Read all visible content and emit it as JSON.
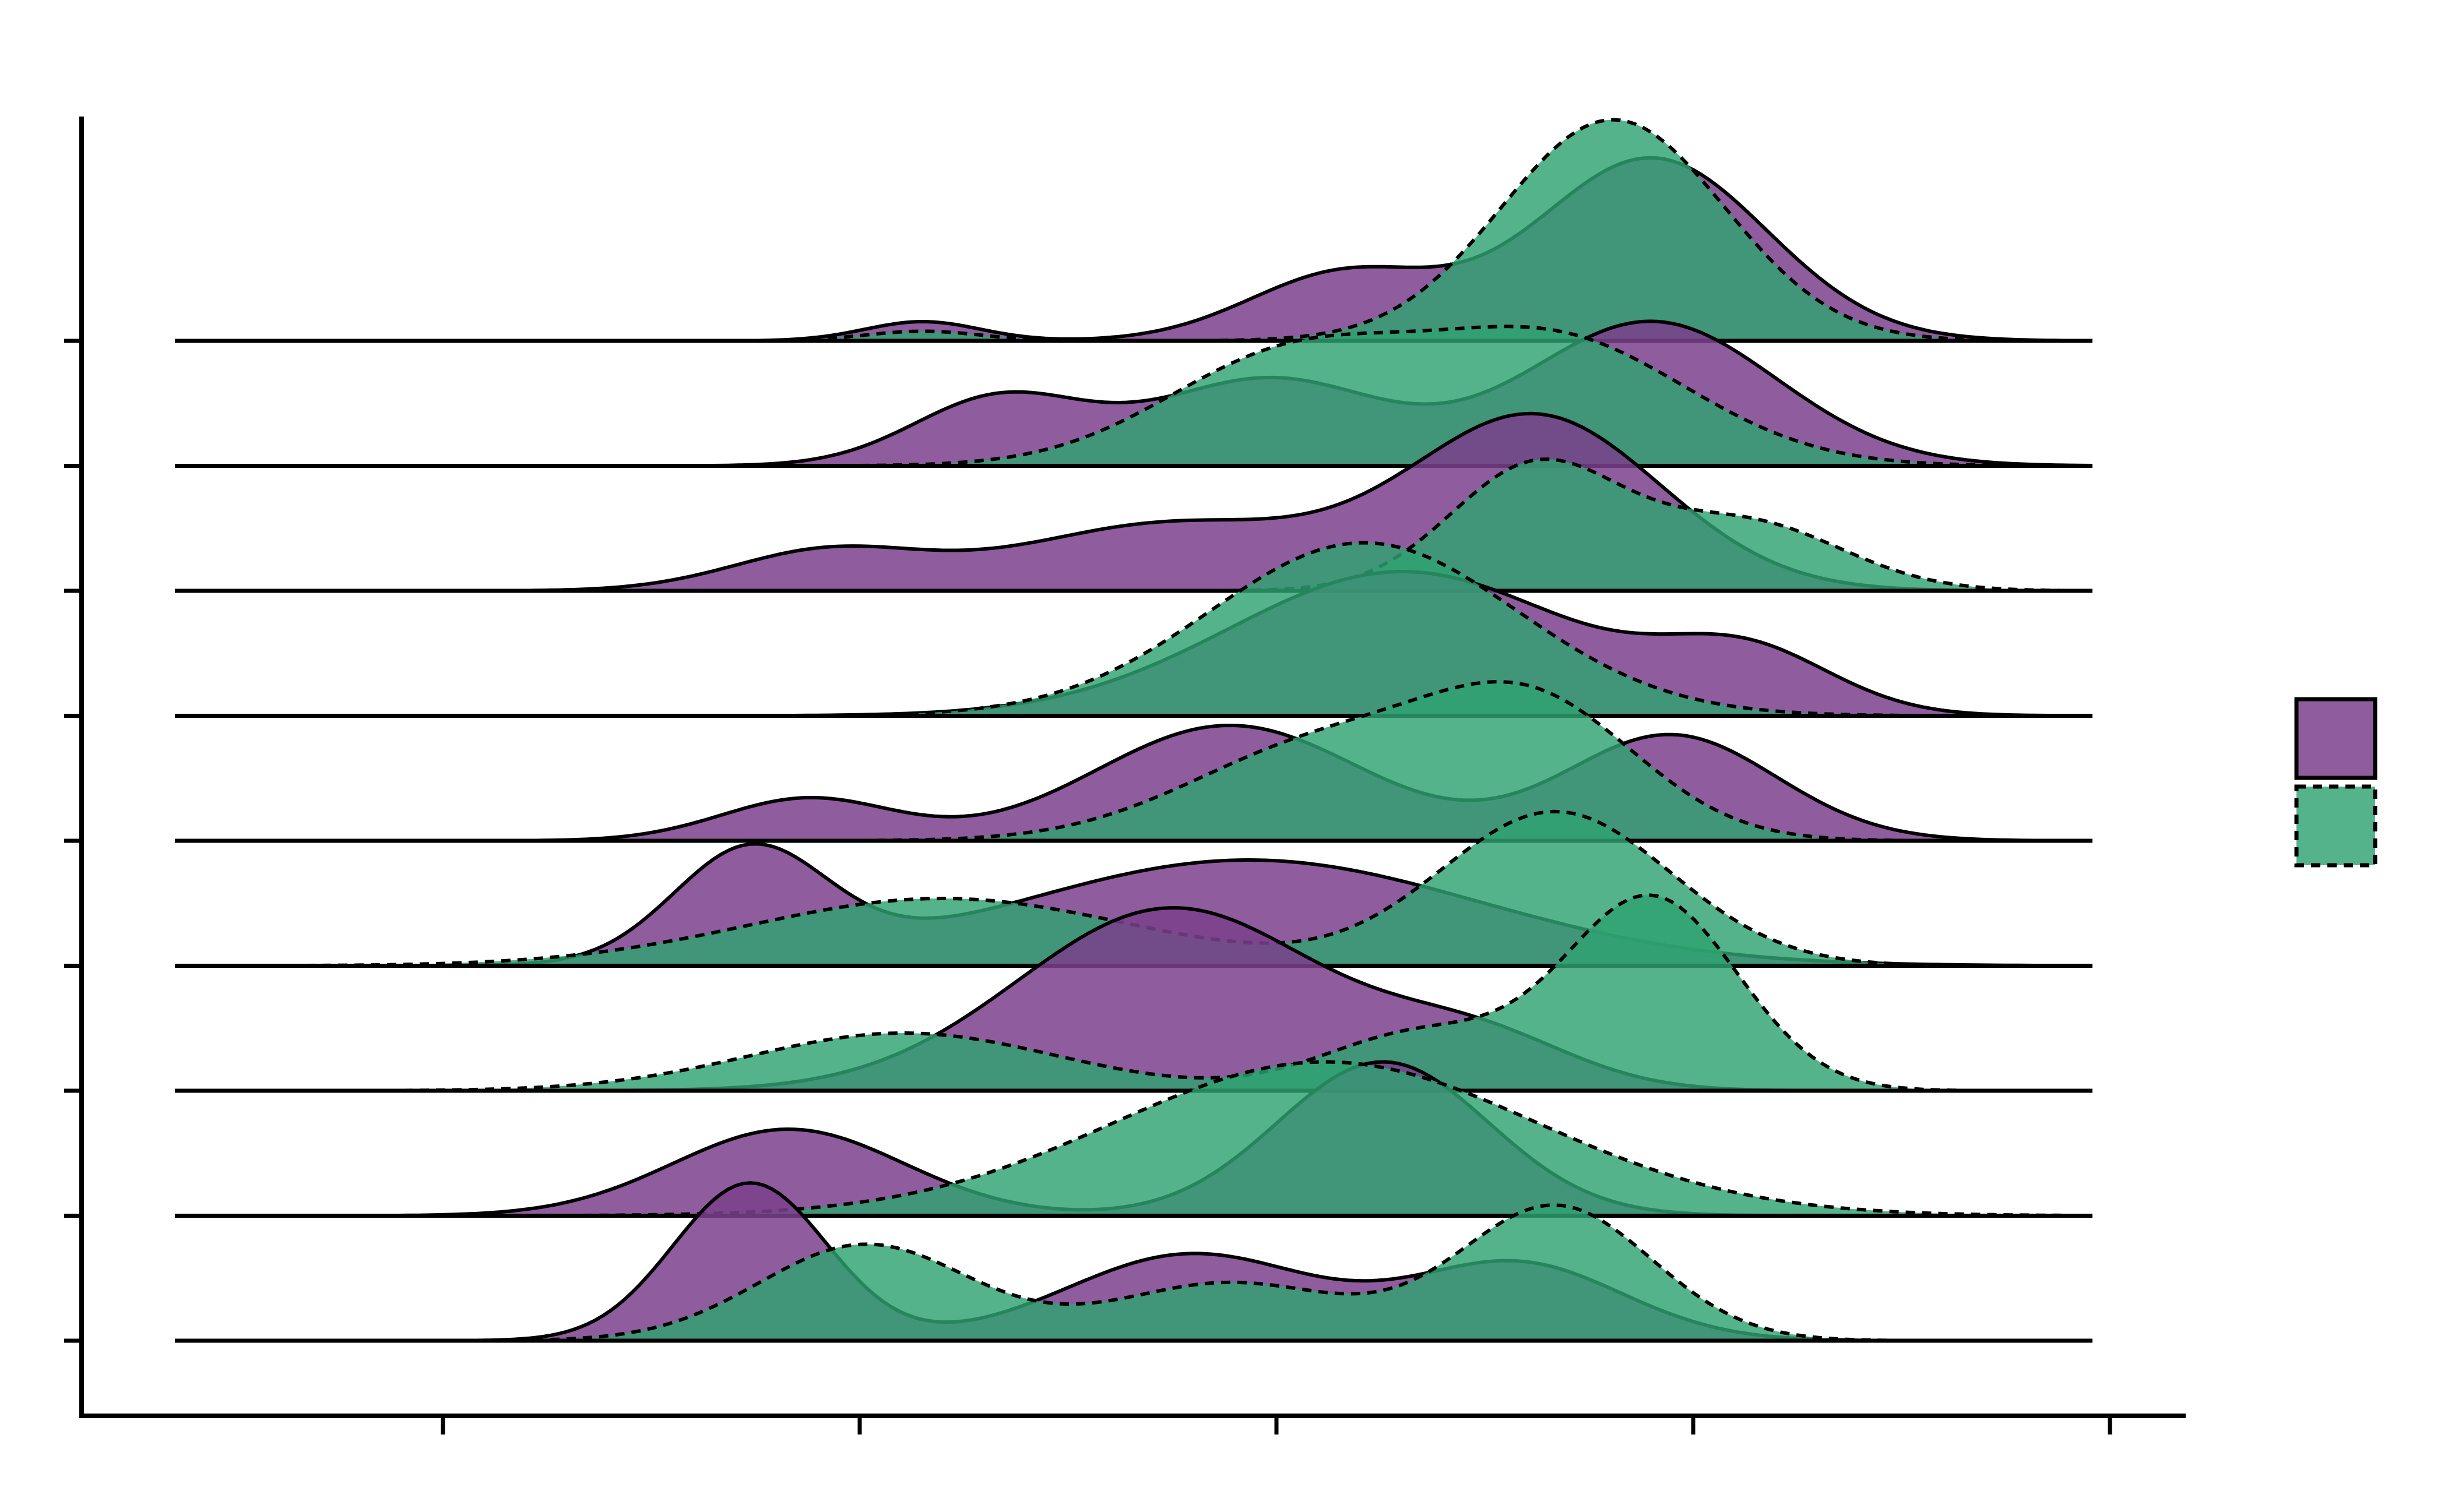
{
  "chart_data": {
    "type": "area",
    "subtype": "ridgeline",
    "title": "",
    "xlabel": "",
    "ylabel": "",
    "x_range": [
      0,
      100
    ],
    "x_ticks": [
      20,
      40,
      60,
      80,
      100
    ],
    "tick_labels_shown": false,
    "legend": {
      "placement": "right",
      "entries": [
        "",
        ""
      ]
    },
    "grid": false,
    "series": [
      {
        "id": "A",
        "color": "#7b3f8c",
        "fill_opacity": 0.85,
        "line": "solid"
      },
      {
        "id": "B",
        "color": "#2fa272",
        "fill_opacity": 0.82,
        "line": "dashed"
      }
    ],
    "ridges": [
      {
        "a": [
          [
            39,
            0.1,
            3.0
          ],
          [
            61,
            0.35,
            5.0
          ],
          [
            77,
            0.95,
            6.0
          ]
        ],
        "b": [
          [
            39,
            0.05,
            3.0
          ],
          [
            75,
            1.15,
            5.8
          ]
        ]
      },
      {
        "a": [
          [
            43,
            0.35,
            4.5
          ],
          [
            57,
            0.45,
            6.0
          ],
          [
            77,
            0.75,
            6.5
          ]
        ],
        "b": [
          [
            58,
            0.55,
            6.5
          ],
          [
            72,
            0.65,
            7.0
          ]
        ]
      },
      {
        "a": [
          [
            34,
            0.2,
            5.0
          ],
          [
            52,
            0.35,
            8.0
          ],
          [
            71,
            0.9,
            6.5
          ]
        ],
        "b": [
          [
            71,
            0.65,
            4.5
          ],
          [
            82,
            0.35,
            5.0
          ]
        ]
      },
      {
        "a": [
          [
            64,
            0.75,
            9.0
          ],
          [
            82,
            0.3,
            4.5
          ]
        ],
        "b": [
          [
            62,
            0.9,
            8.0
          ]
        ]
      },
      {
        "a": [
          [
            33,
            0.22,
            4.5
          ],
          [
            55,
            0.6,
            7.0
          ],
          [
            78,
            0.55,
            5.5
          ]
        ],
        "b": [
          [
            60,
            0.5,
            7.0
          ],
          [
            71,
            0.65,
            5.5
          ]
        ]
      },
      {
        "a": [
          [
            30,
            0.58,
            4.0
          ],
          [
            56,
            0.55,
            12.0
          ]
        ],
        "b": [
          [
            40,
            0.35,
            10.0
          ],
          [
            72,
            0.8,
            6.0
          ]
        ]
      },
      {
        "a": [
          [
            52,
            0.95,
            8.0
          ],
          [
            68,
            0.25,
            5.0
          ]
        ],
        "b": [
          [
            38,
            0.3,
            8.0
          ],
          [
            65,
            0.3,
            5.0
          ],
          [
            77,
            1.0,
            4.5
          ]
        ]
      },
      {
        "a": [
          [
            32,
            0.45,
            6.0
          ],
          [
            63,
            0.8,
            5.5
          ]
        ],
        "b": [
          [
            60,
            0.8,
            11.0
          ]
        ]
      },
      {
        "a": [
          [
            30,
            0.82,
            4.0
          ],
          [
            53,
            0.45,
            6.5
          ],
          [
            70,
            0.4,
            5.5
          ]
        ],
        "b": [
          [
            36,
            0.5,
            5.5
          ],
          [
            55,
            0.3,
            6.0
          ],
          [
            72,
            0.7,
            5.0
          ]
        ]
      }
    ]
  }
}
